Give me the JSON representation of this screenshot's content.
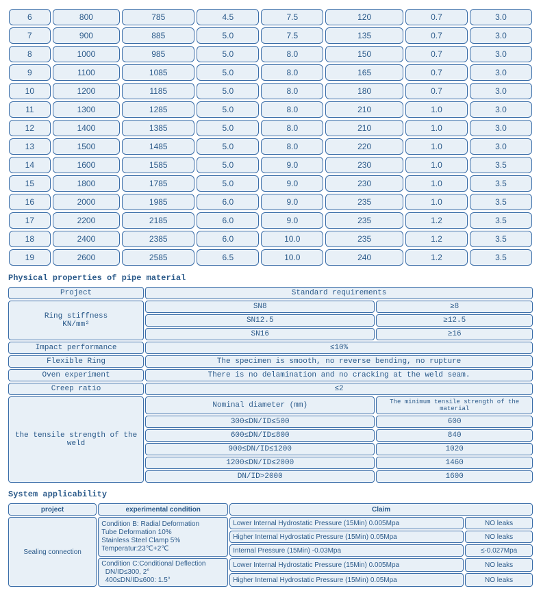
{
  "table1": {
    "col_widths_pct": [
      8,
      13,
      14,
      12,
      12,
      15,
      12,
      12
    ],
    "rows": [
      [
        "6",
        "800",
        "785",
        "4.5",
        "7.5",
        "120",
        "0.7",
        "3.0"
      ],
      [
        "7",
        "900",
        "885",
        "5.0",
        "7.5",
        "135",
        "0.7",
        "3.0"
      ],
      [
        "8",
        "1000",
        "985",
        "5.0",
        "8.0",
        "150",
        "0.7",
        "3.0"
      ],
      [
        "9",
        "1100",
        "1085",
        "5.0",
        "8.0",
        "165",
        "0.7",
        "3.0"
      ],
      [
        "10",
        "1200",
        "1185",
        "5.0",
        "8.0",
        "180",
        "0.7",
        "3.0"
      ],
      [
        "11",
        "1300",
        "1285",
        "5.0",
        "8.0",
        "210",
        "1.0",
        "3.0"
      ],
      [
        "12",
        "1400",
        "1385",
        "5.0",
        "8.0",
        "210",
        "1.0",
        "3.0"
      ],
      [
        "13",
        "1500",
        "1485",
        "5.0",
        "8.0",
        "220",
        "1.0",
        "3.0"
      ],
      [
        "14",
        "1600",
        "1585",
        "5.0",
        "9.0",
        "230",
        "1.0",
        "3.5"
      ],
      [
        "15",
        "1800",
        "1785",
        "5.0",
        "9.0",
        "230",
        "1.0",
        "3.5"
      ],
      [
        "16",
        "2000",
        "1985",
        "6.0",
        "9.0",
        "235",
        "1.0",
        "3.5"
      ],
      [
        "17",
        "2200",
        "2185",
        "6.0",
        "9.0",
        "235",
        "1.2",
        "3.5"
      ],
      [
        "18",
        "2400",
        "2385",
        "6.0",
        "10.0",
        "235",
        "1.2",
        "3.5"
      ],
      [
        "19",
        "2600",
        "2585",
        "6.5",
        "10.0",
        "240",
        "1.2",
        "3.5"
      ]
    ]
  },
  "physical": {
    "title": "Physical properties of pipe material",
    "project_label": "Project",
    "std_label": "Standard requirements",
    "ring_stiffness_label": "Ring stiffness",
    "ring_stiffness_unit": "KN/mm²",
    "ring_rows": [
      [
        "SN8",
        "≥8"
      ],
      [
        "SN12.5",
        "≥12.5"
      ],
      [
        "SN16",
        "≥16"
      ]
    ],
    "impact_label": "Impact performance",
    "impact_val": "≤10%",
    "flex_label": "Flexible Ring",
    "flex_val": "The specimen is smooth, no reverse bending, no rupture",
    "oven_label": "Oven experiment",
    "oven_val": "There is no delamination and no cracking at the weld seam.",
    "creep_label": "Creep ratio",
    "creep_val": "≤2",
    "tensile_label": "the tensile strength of the weld",
    "nominal_label": "Nominal diameter (mm)",
    "min_tensile_label": "The minimum tensile strength of the material",
    "tensile_rows": [
      [
        "300≤DN/ID≤500",
        "600"
      ],
      [
        "600≤DN/ID≤800",
        "840"
      ],
      [
        "900≤DN/ID≤1200",
        "1020"
      ],
      [
        "1200≤DN/ID≤2000",
        "1460"
      ],
      [
        "DN/ID>2000",
        "1600"
      ]
    ]
  },
  "system": {
    "title": "System applicability",
    "project_label": "project",
    "exp_label": "experimental condition",
    "claim_label": "Claim",
    "sealing_label": "Sealing connection",
    "cond_b_html": "Condition B: Radial Deformation<br>Tube Deformation 10%<br>Stainless Steel Clamp 5%<br>Temperatur:23℃+2℃",
    "cond_c_html": "Condition C:Conditional Deflection<br>&nbsp;&nbsp;DN/ID≤300, 2°<br>&nbsp;&nbsp;400≤DN/ID≤600: 1.5°",
    "claims_b": [
      [
        "Lower Internal Hydrostatic Pressure (15Min)  0.005Mpa",
        "NO leaks"
      ],
      [
        "Higher Internal Hydrostatic Pressure (15Min)  0.05Mpa",
        "NO leaks"
      ],
      [
        "Internal Pressure                    (15Min)  -0.03Mpa",
        "≤-0.027Mpa"
      ]
    ],
    "claims_c": [
      [
        "Lower Internal Hydrostatic Pressure (15Min)  0.005Mpa",
        "NO leaks"
      ],
      [
        "Higher Internal Hydrostatic Pressure (15Min)  0.05Mpa",
        "NO leaks"
      ]
    ]
  },
  "colors": {
    "cell_bg": "#e8f0f7",
    "cell_border": "#3a6da8",
    "text": "#2b5a8a"
  }
}
